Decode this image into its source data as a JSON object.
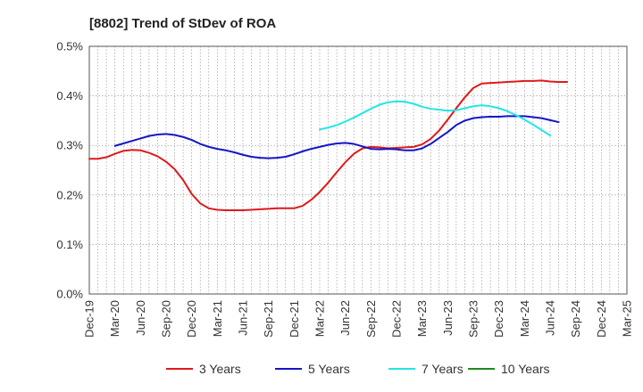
{
  "chart_data": {
    "type": "line",
    "title": "[8802]  Trend of StDev of ROA",
    "x": [
      "Dec-19",
      "Jan-20",
      "Feb-20",
      "Mar-20",
      "Apr-20",
      "May-20",
      "Jun-20",
      "Jul-20",
      "Aug-20",
      "Sep-20",
      "Oct-20",
      "Nov-20",
      "Dec-20",
      "Jan-21",
      "Feb-21",
      "Mar-21",
      "Apr-21",
      "May-21",
      "Jun-21",
      "Jul-21",
      "Aug-21",
      "Sep-21",
      "Oct-21",
      "Nov-21",
      "Dec-21",
      "Jan-22",
      "Feb-22",
      "Mar-22",
      "Apr-22",
      "May-22",
      "Jun-22",
      "Jul-22",
      "Aug-22",
      "Sep-22",
      "Oct-22",
      "Nov-22",
      "Dec-22",
      "Jan-23",
      "Feb-23",
      "Mar-23",
      "Apr-23",
      "May-23",
      "Jun-23",
      "Jul-23",
      "Aug-23",
      "Sep-23",
      "Oct-23",
      "Nov-23",
      "Dec-23",
      "Jan-24",
      "Feb-24",
      "Mar-24",
      "Apr-24",
      "May-24",
      "Jun-24",
      "Jul-24",
      "Aug-24",
      "Sep-24",
      "Oct-24",
      "Nov-24",
      "Dec-24",
      "Jan-25",
      "Feb-25",
      "Mar-25"
    ],
    "x_tick_labels": [
      "Dec-19",
      "Mar-20",
      "Jun-20",
      "Sep-20",
      "Dec-20",
      "Mar-21",
      "Jun-21",
      "Sep-21",
      "Dec-21",
      "Mar-22",
      "Jun-22",
      "Sep-22",
      "Dec-22",
      "Mar-23",
      "Jun-23",
      "Sep-23",
      "Dec-23",
      "Mar-24",
      "Jun-24",
      "Sep-24",
      "Dec-24",
      "Mar-25"
    ],
    "y_tick_labels": [
      "0.0%",
      "0.1%",
      "0.2%",
      "0.3%",
      "0.4%",
      "0.5%"
    ],
    "ylim": [
      0,
      0.5
    ],
    "grid": true,
    "legend_position": "bottom",
    "series": [
      {
        "name": "3 Years",
        "color": "#dd1a1a",
        "values": [
          0.273,
          0.273,
          0.276,
          0.283,
          0.289,
          0.291,
          0.29,
          0.285,
          0.278,
          0.267,
          0.252,
          0.23,
          0.202,
          0.183,
          0.173,
          0.17,
          0.169,
          0.169,
          0.169,
          0.17,
          0.171,
          0.172,
          0.173,
          0.173,
          0.173,
          0.178,
          0.19,
          0.206,
          0.225,
          0.246,
          0.266,
          0.283,
          0.294,
          0.297,
          0.296,
          0.294,
          0.295,
          0.296,
          0.297,
          0.302,
          0.313,
          0.33,
          0.352,
          0.375,
          0.397,
          0.416,
          0.425,
          0.426,
          0.427,
          0.428,
          0.429,
          0.43,
          0.43,
          0.431,
          0.429,
          0.428,
          0.428,
          null,
          null,
          null,
          null,
          null,
          null,
          null
        ]
      },
      {
        "name": "5 Years",
        "color": "#1515c8",
        "values": [
          null,
          null,
          null,
          0.299,
          0.304,
          0.309,
          0.314,
          0.319,
          0.322,
          0.323,
          0.321,
          0.317,
          0.311,
          0.303,
          0.297,
          0.293,
          0.29,
          0.286,
          0.281,
          0.277,
          0.275,
          0.274,
          0.275,
          0.277,
          0.282,
          0.288,
          0.293,
          0.297,
          0.301,
          0.304,
          0.305,
          0.303,
          0.298,
          0.293,
          0.292,
          0.293,
          0.292,
          0.29,
          0.29,
          0.294,
          0.303,
          0.315,
          0.327,
          0.341,
          0.35,
          0.355,
          0.357,
          0.358,
          0.358,
          0.359,
          0.359,
          0.359,
          0.357,
          0.355,
          0.351,
          0.347,
          null,
          null,
          null,
          null,
          null,
          null,
          null,
          null
        ]
      },
      {
        "name": "7 Years",
        "color": "#22e6e6",
        "values": [
          null,
          null,
          null,
          null,
          null,
          null,
          null,
          null,
          null,
          null,
          null,
          null,
          null,
          null,
          null,
          null,
          null,
          null,
          null,
          null,
          null,
          null,
          null,
          null,
          null,
          null,
          null,
          0.332,
          0.336,
          0.341,
          0.348,
          0.356,
          0.365,
          0.374,
          0.382,
          0.387,
          0.389,
          0.388,
          0.384,
          0.378,
          0.374,
          0.372,
          0.37,
          0.371,
          0.375,
          0.379,
          0.381,
          0.379,
          0.375,
          0.369,
          0.361,
          0.352,
          0.342,
          0.331,
          0.32,
          null,
          null,
          null,
          null,
          null,
          null,
          null,
          null,
          null
        ]
      },
      {
        "name": "10 Years",
        "color": "#1f8a1f",
        "values": [
          null,
          null,
          null,
          null,
          null,
          null,
          null,
          null,
          null,
          null,
          null,
          null,
          null,
          null,
          null,
          null,
          null,
          null,
          null,
          null,
          null,
          null,
          null,
          null,
          null,
          null,
          null,
          null,
          null,
          null,
          null,
          null,
          null,
          null,
          null,
          null,
          null,
          null,
          null,
          null,
          null,
          null,
          null,
          null,
          null,
          null,
          null,
          null,
          null,
          null,
          null,
          null,
          null,
          null,
          null,
          null,
          null,
          null,
          null,
          null,
          null,
          null,
          null,
          null
        ]
      }
    ]
  }
}
